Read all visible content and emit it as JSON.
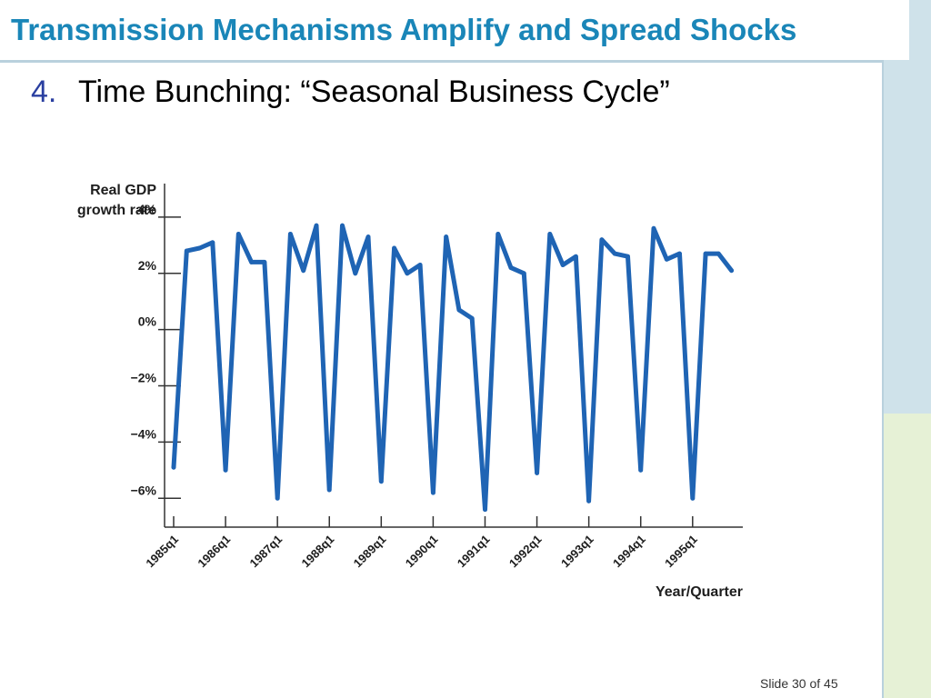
{
  "slide": {
    "title": "Transmission Mechanisms Amplify and Spread Shocks",
    "bullet_number": "4.",
    "bullet_text": "Time Bunching: “Seasonal Business Cycle”",
    "slide_number": "Slide 30 of 45"
  },
  "colors": {
    "title": "#1a86b8",
    "bullet_number": "#2a3fa0",
    "series_line": "#1f64b4"
  },
  "chart_data": {
    "type": "line",
    "ylabel_line1": "Real GDP",
    "ylabel_line2": "growth rate",
    "xlabel": "Year/Quarter",
    "ylim": [
      -6.8,
      5.0
    ],
    "yticks": [
      4,
      2,
      0,
      -2,
      -4,
      -6
    ],
    "ytick_labels": [
      "4%",
      "2%",
      "0%",
      "−2%",
      "−4%",
      "−6%"
    ],
    "xtick_labels": [
      "1985q1",
      "1986q1",
      "1987q1",
      "1988q1",
      "1989q1",
      "1990q1",
      "1991q1",
      "1992q1",
      "1993q1",
      "1994q1",
      "1995q1"
    ],
    "xtick_index": [
      0,
      4,
      8,
      12,
      16,
      20,
      24,
      28,
      32,
      36,
      40
    ],
    "series": [
      {
        "values": [
          -4.9,
          2.8,
          2.9,
          3.1,
          -5.0,
          3.4,
          2.4,
          2.4,
          -6.0,
          3.4,
          2.1,
          3.7,
          -5.7,
          3.7,
          2.0,
          3.3,
          -5.4,
          2.9,
          2.0,
          2.3,
          -5.8,
          3.3,
          0.7,
          0.4,
          -6.4,
          3.4,
          2.2,
          2.0,
          -5.1,
          3.4,
          2.3,
          2.6,
          -6.1,
          3.2,
          2.7,
          2.6,
          -5.0,
          3.6,
          2.5,
          2.7,
          -6.0,
          2.7,
          2.7,
          2.1
        ]
      }
    ]
  }
}
